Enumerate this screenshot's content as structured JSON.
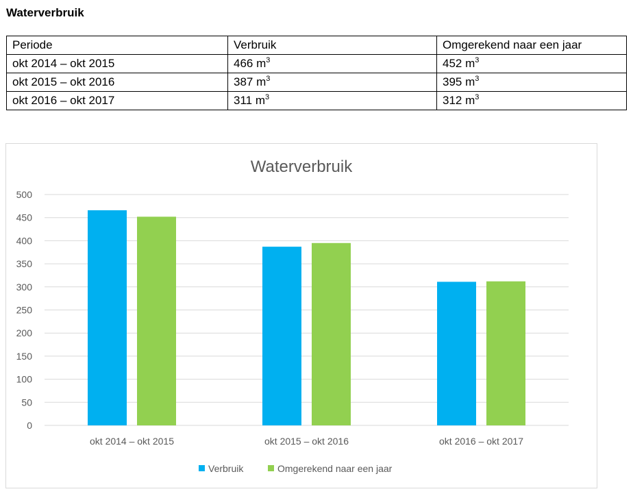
{
  "document": {
    "title": "Waterverbruik"
  },
  "table": {
    "headers": [
      "Periode",
      "Verbruik",
      "Omgerekend naar een jaar"
    ],
    "unit": "m",
    "unit_exponent": "3",
    "rows": [
      {
        "periode": "okt 2014 – okt 2015",
        "verbruik": "466",
        "jaar": "452"
      },
      {
        "periode": "okt 2015 – okt 2016",
        "verbruik": "387",
        "jaar": "395"
      },
      {
        "periode": "okt 2016 – okt 2017",
        "verbruik": "311",
        "jaar": "312"
      }
    ]
  },
  "chart_data": {
    "type": "bar",
    "title": "Waterverbruik",
    "xlabel": "",
    "ylabel": "",
    "categories": [
      "okt 2014 – okt 2015",
      "okt 2015 – okt 2016",
      "okt 2016 – okt 2017"
    ],
    "series": [
      {
        "name": "Verbruik",
        "values": [
          466,
          387,
          311
        ],
        "color": "#00b0f0"
      },
      {
        "name": "Omgerekend naar een jaar",
        "values": [
          452,
          395,
          312
        ],
        "color": "#92d050"
      }
    ],
    "ylim": [
      0,
      500
    ],
    "yticks": [
      0,
      50,
      100,
      150,
      200,
      250,
      300,
      350,
      400,
      450,
      500
    ],
    "grid": true,
    "legend": "bottom",
    "colors": {
      "grid": "#d9d9d9",
      "text": "#595959",
      "title": "#595959"
    }
  }
}
